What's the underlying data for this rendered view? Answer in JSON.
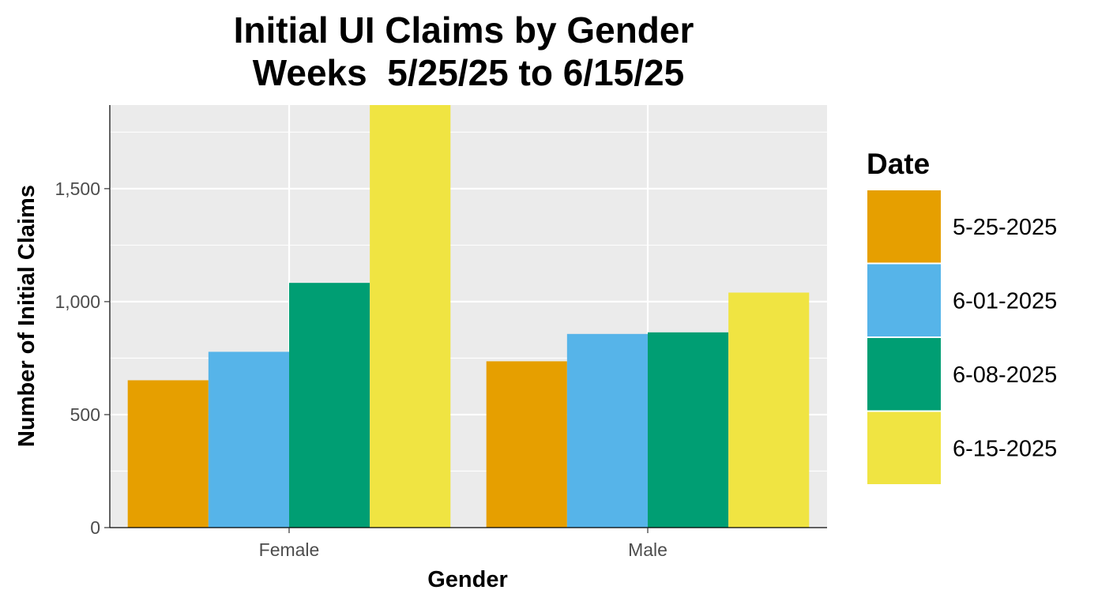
{
  "chart_data": {
    "type": "bar",
    "title": "Initial UI Claims by Gender",
    "subtitle": "Weeks  5/25/25 to 6/15/25",
    "xlabel": "Gender",
    "ylabel": "Number of Initial Claims",
    "categories": [
      "Female",
      "Male"
    ],
    "series": [
      {
        "name": "5-25-2025",
        "values": [
          652,
          736
        ]
      },
      {
        "name": "6-01-2025",
        "values": [
          778,
          857
        ]
      },
      {
        "name": "6-08-2025",
        "values": [
          1083,
          864
        ]
      },
      {
        "name": "6-15-2025",
        "values": [
          1870,
          1040
        ]
      }
    ],
    "ylim": [
      0,
      1870
    ],
    "yticks": [
      0,
      500,
      1000,
      1500
    ],
    "ytick_labels": [
      "0",
      "500",
      "1,000",
      "1,500"
    ],
    "grid": true,
    "legend": {
      "title": "Date",
      "position": "right"
    },
    "colors": [
      "#E69F00",
      "#56B4E9",
      "#009E73",
      "#F0E442"
    ],
    "panel_background": "#EBEBEB"
  }
}
